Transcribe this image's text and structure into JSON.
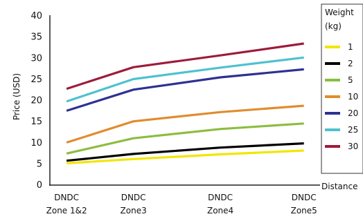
{
  "chart_data": {
    "type": "line",
    "title": "",
    "xlabel": "Distance",
    "ylabel": "Price (USD)",
    "categories": [
      [
        "DNDC",
        "Zone 1&2"
      ],
      [
        "DNDC",
        "Zone3"
      ],
      [
        "DNDC",
        "Zone4"
      ],
      [
        "DNDC",
        "Zone5"
      ]
    ],
    "x_positions": [
      0.25,
      1.25,
      2.55,
      3.8
    ],
    "x_range": [
      0,
      4
    ],
    "ylim": [
      0,
      40
    ],
    "yticks": [
      0,
      5,
      10,
      15,
      20,
      25,
      30,
      35,
      40
    ],
    "grid": false,
    "legend_title": [
      "Weight",
      "(kg)"
    ],
    "legend_position": "right",
    "series": [
      {
        "name": "1",
        "color": "#f2e600",
        "values": [
          5.0,
          6.0,
          7.1,
          8.0
        ]
      },
      {
        "name": "2",
        "color": "#000000",
        "values": [
          5.6,
          7.2,
          8.7,
          9.7
        ]
      },
      {
        "name": "5",
        "color": "#8cbd3f",
        "values": [
          7.3,
          10.9,
          13.1,
          14.4
        ]
      },
      {
        "name": "10",
        "color": "#e08c2e",
        "values": [
          9.9,
          14.9,
          17.1,
          18.6
        ]
      },
      {
        "name": "20",
        "color": "#2e3192",
        "values": [
          17.4,
          22.4,
          25.3,
          27.2
        ]
      },
      {
        "name": "25",
        "color": "#4fc1d0",
        "values": [
          19.6,
          24.9,
          27.6,
          30.0
        ]
      },
      {
        "name": "30",
        "color": "#9d1c3a",
        "values": [
          22.6,
          27.7,
          30.5,
          33.3
        ]
      }
    ]
  }
}
